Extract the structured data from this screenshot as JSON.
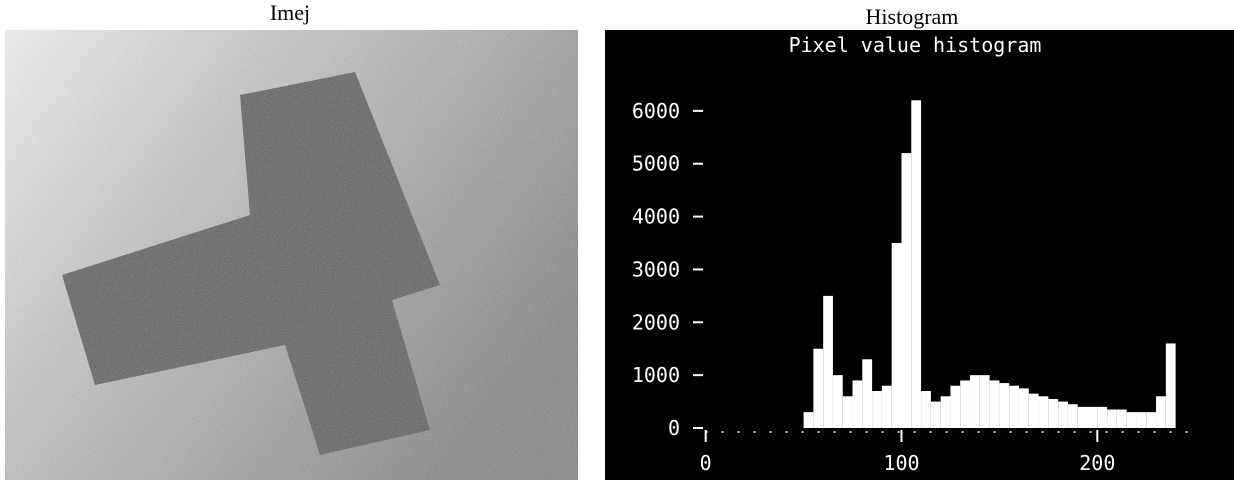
{
  "figure": {
    "image_caption": "Imej",
    "chart_caption": "Histogram"
  },
  "chart_data": {
    "type": "histogram",
    "title": "Pixel value histogram",
    "color": "#ffffff",
    "bins": [
      0,
      5,
      10,
      15,
      20,
      25,
      30,
      35,
      40,
      45,
      50,
      55,
      60,
      65,
      70,
      75,
      80,
      85,
      90,
      95,
      100,
      105,
      110,
      115,
      120,
      125,
      130,
      135,
      140,
      145,
      150,
      155,
      160,
      165,
      170,
      175,
      180,
      185,
      190,
      195,
      200,
      205,
      210,
      215,
      220,
      225,
      230,
      235,
      240,
      245,
      250,
      255
    ],
    "values": [
      0,
      0,
      0,
      0,
      0,
      0,
      0,
      0,
      0,
      0,
      300,
      1500,
      2500,
      1000,
      600,
      900,
      1300,
      700,
      800,
      3500,
      5200,
      6200,
      700,
      500,
      600,
      800,
      900,
      1000,
      1000,
      900,
      850,
      800,
      750,
      650,
      600,
      550,
      500,
      450,
      400,
      400,
      400,
      350,
      350,
      300,
      300,
      300,
      600,
      1600,
      0,
      0,
      0
    ],
    "xlim": [
      -8,
      255
    ],
    "ylim": [
      0,
      6300
    ],
    "xticks": [
      0,
      100,
      200
    ],
    "yticks": [
      0,
      1000,
      2000,
      3000,
      4000,
      5000,
      6000
    ]
  }
}
